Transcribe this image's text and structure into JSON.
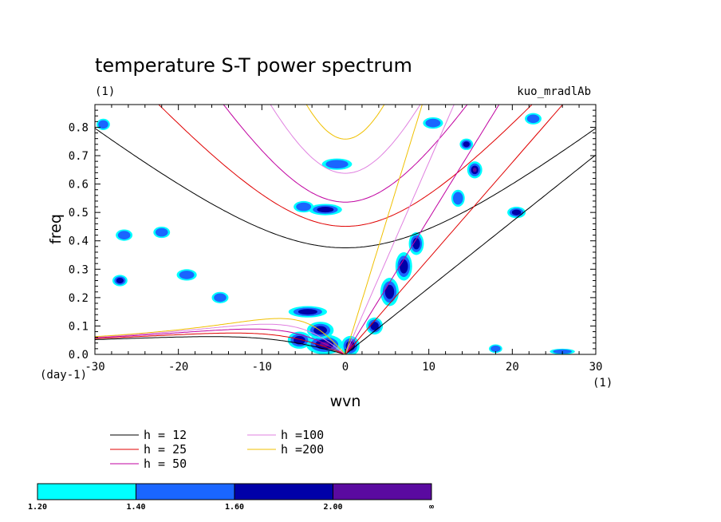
{
  "chart_data": {
    "type": "heatmap",
    "title": "temperature S-T power spectrum",
    "subtitle_left": "(1)",
    "subtitle_right": "kuo_mradlAb",
    "xlabel": "wvn",
    "ylabel": "freq",
    "x_unit": "(1)",
    "y_unit": "(day-1)",
    "xlim": [
      -30,
      30
    ],
    "ylim": [
      0,
      0.88
    ],
    "x_ticks": [
      -30,
      -20,
      -10,
      0,
      10,
      20,
      30
    ],
    "x_tick_labels": [
      "-30",
      "-20",
      "-10",
      "0",
      "10",
      "20",
      "30"
    ],
    "y_ticks": [
      0,
      0.1,
      0.2,
      0.3,
      0.4,
      0.5,
      0.6,
      0.7,
      0.8
    ],
    "y_tick_labels": [
      "0.0",
      "0.1",
      "0.2",
      "0.3",
      "0.4",
      "0.5",
      "0.6",
      "0.7",
      "0.8"
    ],
    "contour_levels": {
      "boundaries": [
        "1.20",
        "1.40",
        "1.60",
        "2.00",
        "∞"
      ],
      "colors": [
        "#00ffff",
        "#1a66ff",
        "#0000a8",
        "#5a0aa0"
      ]
    },
    "dispersion_curves": [
      {
        "name": "h = 12",
        "h": 12,
        "color": "#000000"
      },
      {
        "name": "h = 25",
        "h": 25,
        "color": "#e00000"
      },
      {
        "name": "h = 50",
        "h": 50,
        "color": "#c000a0"
      },
      {
        "name": "h =100",
        "h": 100,
        "color": "#e080e0"
      },
      {
        "name": "h =200",
        "h": 200,
        "color": "#f0c000"
      }
    ],
    "power_blobs": [
      {
        "x": -2.5,
        "y": 0.035,
        "rx": 2.2,
        "ry": 0.035,
        "level": 3
      },
      {
        "x": -5.5,
        "y": 0.05,
        "rx": 1.4,
        "ry": 0.03,
        "level": 2
      },
      {
        "x": 0.6,
        "y": 0.03,
        "rx": 1.1,
        "ry": 0.035,
        "level": 3
      },
      {
        "x": -4.5,
        "y": 0.15,
        "rx": 2.3,
        "ry": 0.02,
        "level": 2
      },
      {
        "x": -3,
        "y": 0.085,
        "rx": 1.6,
        "ry": 0.03,
        "level": 2
      },
      {
        "x": -2.4,
        "y": 0.51,
        "rx": 2.0,
        "ry": 0.02,
        "level": 2
      },
      {
        "x": -1.0,
        "y": 0.67,
        "rx": 1.8,
        "ry": 0.02,
        "level": 1
      },
      {
        "x": 3.5,
        "y": 0.1,
        "rx": 1.0,
        "ry": 0.03,
        "level": 2
      },
      {
        "x": 5.3,
        "y": 0.22,
        "rx": 1.1,
        "ry": 0.05,
        "level": 2
      },
      {
        "x": 7.0,
        "y": 0.31,
        "rx": 1.0,
        "ry": 0.05,
        "level": 2
      },
      {
        "x": 8.5,
        "y": 0.39,
        "rx": 0.9,
        "ry": 0.04,
        "level": 2
      },
      {
        "x": 15.5,
        "y": 0.65,
        "rx": 0.9,
        "ry": 0.03,
        "level": 3
      },
      {
        "x": 13.5,
        "y": 0.55,
        "rx": 0.8,
        "ry": 0.03,
        "level": 1
      },
      {
        "x": -27,
        "y": 0.26,
        "rx": 0.9,
        "ry": 0.02,
        "level": 2
      },
      {
        "x": -26.5,
        "y": 0.42,
        "rx": 1.0,
        "ry": 0.02,
        "level": 1
      },
      {
        "x": -5,
        "y": 0.52,
        "rx": 1.2,
        "ry": 0.02,
        "level": 1
      },
      {
        "x": 10.5,
        "y": 0.815,
        "rx": 1.2,
        "ry": 0.02,
        "level": 1
      },
      {
        "x": 20.5,
        "y": 0.5,
        "rx": 1.1,
        "ry": 0.02,
        "level": 2
      },
      {
        "x": 22.5,
        "y": 0.83,
        "rx": 1.0,
        "ry": 0.02,
        "level": 1
      },
      {
        "x": 26,
        "y": 0.01,
        "rx": 1.5,
        "ry": 0.01,
        "level": 1
      },
      {
        "x": -29,
        "y": 0.81,
        "rx": 0.8,
        "ry": 0.02,
        "level": 1
      },
      {
        "x": -22,
        "y": 0.43,
        "rx": 1.0,
        "ry": 0.02,
        "level": 1
      },
      {
        "x": -15,
        "y": 0.2,
        "rx": 1.0,
        "ry": 0.02,
        "level": 1
      },
      {
        "x": -19,
        "y": 0.28,
        "rx": 1.2,
        "ry": 0.02,
        "level": 1
      },
      {
        "x": 14.5,
        "y": 0.74,
        "rx": 0.8,
        "ry": 0.02,
        "level": 2
      },
      {
        "x": 18,
        "y": 0.02,
        "rx": 0.8,
        "ry": 0.015,
        "level": 1
      }
    ]
  }
}
